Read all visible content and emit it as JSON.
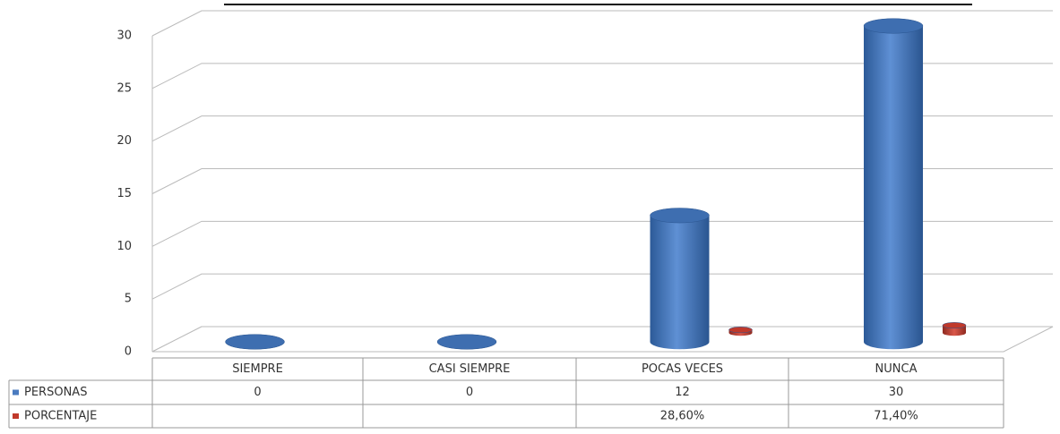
{
  "chart_data": {
    "type": "bar",
    "categories": [
      "SIEMPRE",
      "CASI SIEMPRE",
      "POCAS VECES",
      "NUNCA"
    ],
    "series": [
      {
        "name": "PERSONAS",
        "color": "#4a7bbf",
        "values": [
          0,
          0,
          12,
          30
        ]
      },
      {
        "name": "PORCENTAJE",
        "color": "#c0392b",
        "values": [
          null,
          null,
          0.286,
          0.714
        ],
        "value_labels": [
          null,
          null,
          "28,60%",
          "71,40%"
        ]
      }
    ],
    "ylim": [
      0,
      30
    ],
    "yticks": [
      0,
      5,
      10,
      15,
      20,
      25,
      30
    ],
    "grid": true
  }
}
